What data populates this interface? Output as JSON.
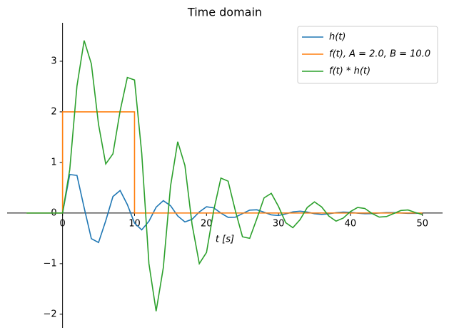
{
  "chart_data": {
    "type": "line",
    "title": "Time domain",
    "x_label": "t [s]",
    "x": [
      -5,
      -4,
      -3,
      -2,
      -1,
      0,
      1,
      2,
      3,
      4,
      5,
      6,
      7,
      8,
      9,
      10,
      11,
      12,
      13,
      14,
      15,
      16,
      17,
      18,
      19,
      20,
      21,
      22,
      23,
      24,
      25,
      26,
      27,
      28,
      29,
      30,
      31,
      32,
      33,
      34,
      35,
      36,
      37,
      38,
      39,
      40,
      41,
      42,
      43,
      44,
      45,
      46,
      47,
      48,
      49,
      50
    ],
    "series": [
      {
        "name": "h(t)",
        "color": "#1f77b4",
        "values": [
          0,
          0,
          0,
          0,
          0,
          0,
          0.761,
          0.744,
          0.105,
          -0.507,
          -0.582,
          -0.153,
          0.326,
          0.445,
          0.168,
          -0.2,
          -0.333,
          -0.162,
          0.115,
          0.244,
          0.145,
          -0.058,
          -0.176,
          -0.124,
          0.022,
          0.124,
          0.102,
          -0.001,
          -0.085,
          -0.082,
          -0.011,
          0.057,
          0.064,
          0.016,
          -0.036,
          -0.049,
          -0.018,
          0.022,
          0.037,
          0.018,
          -0.013,
          -0.027,
          -0.016,
          0.007,
          0.019,
          0.014,
          -0.003,
          -0.014,
          -0.011,
          0,
          0.009,
          0.009,
          0.001,
          -0.006,
          -0.007,
          -0.002
        ]
      },
      {
        "name": "f(t), A = 2.0, B = 10.0",
        "color": "#ff7f0e",
        "x": [
          -5,
          0,
          0,
          10,
          10,
          50
        ],
        "values": [
          0,
          0,
          2,
          2,
          0,
          0
        ]
      },
      {
        "name": "f(t) * h(t)",
        "color": "#2ca02c",
        "values": [
          0,
          0,
          0,
          0,
          0,
          0,
          0.86,
          2.51,
          3.41,
          2.95,
          1.75,
          0.97,
          1.17,
          2.02,
          2.68,
          2.63,
          1.18,
          -1.0,
          -1.94,
          -1.08,
          0.53,
          1.41,
          0.94,
          -0.23,
          -1.0,
          -0.78,
          0.05,
          0.69,
          0.63,
          0.05,
          -0.47,
          -0.5,
          -0.11,
          0.3,
          0.39,
          0.13,
          -0.19,
          -0.29,
          -0.13,
          0.11,
          0.22,
          0.12,
          -0.06,
          -0.16,
          -0.1,
          0.03,
          0.11,
          0.09,
          -0.01,
          -0.08,
          -0.07,
          -0.01,
          0.05,
          0.06,
          0.01,
          -0.03
        ]
      }
    ],
    "xlim": [
      -7.7,
      52.8
    ],
    "ylim": [
      -2.27,
      3.76
    ],
    "xticks": [
      0,
      10,
      20,
      30,
      40,
      50
    ],
    "yticks": [
      {
        "value": -2,
        "label": "−2"
      },
      {
        "value": -1,
        "label": "−1"
      },
      0,
      1,
      2,
      3
    ],
    "legend": "upper right"
  }
}
